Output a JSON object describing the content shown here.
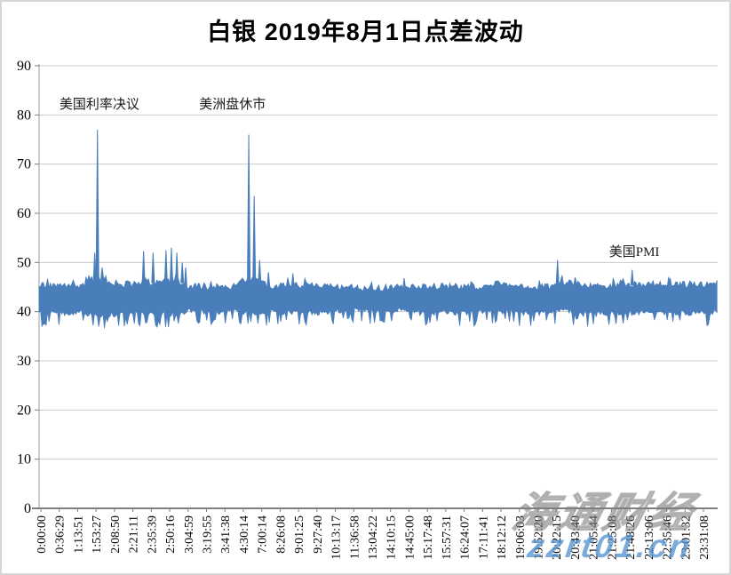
{
  "title": "白银 2019年8月1日点差波动",
  "watermark": {
    "brand": "海通财经",
    "url": "zzrt01.cn"
  },
  "chart_data": {
    "type": "line",
    "title": "白银 2019年8月1日点差波动",
    "xlabel": "",
    "ylabel": "",
    "ylim": [
      0,
      90
    ],
    "y_ticks": [
      0,
      10,
      20,
      30,
      40,
      50,
      60,
      70,
      80,
      90
    ],
    "grid": true,
    "legend": false,
    "series_color": "#4A7EBB",
    "x_tick_labels": [
      "0:00:00",
      "0:36:29",
      "1:13:51",
      "1:53:27",
      "2:08:50",
      "2:21:11",
      "2:35:39",
      "2:50:16",
      "3:04:59",
      "3:19:55",
      "3:41:38",
      "4:30:14",
      "7:00:14",
      "8:26:08",
      "9:01:25",
      "9:27:40",
      "10:13:17",
      "11:36:58",
      "13:04:22",
      "14:10:15",
      "14:45:00",
      "15:17:48",
      "15:57:31",
      "16:24:07",
      "17:11:41",
      "18:12:12",
      "19:06:03",
      "19:52:20",
      "20:22:15",
      "20:43:40",
      "21:05:44",
      "21:25:08",
      "21:48:26",
      "22:13:06",
      "22:35:46",
      "23:01:32",
      "23:31:08"
    ],
    "noise_band_segments": [
      {
        "x0": 0.0,
        "x1": 0.068,
        "min": 39.2,
        "max": 46.0
      },
      {
        "x0": 0.068,
        "x1": 0.1,
        "min": 38.8,
        "max": 47.5
      },
      {
        "x0": 0.1,
        "x1": 0.145,
        "min": 38.8,
        "max": 46.3
      },
      {
        "x0": 0.145,
        "x1": 0.215,
        "min": 39.0,
        "max": 46.8
      },
      {
        "x0": 0.215,
        "x1": 0.295,
        "min": 39.5,
        "max": 45.8
      },
      {
        "x0": 0.295,
        "x1": 0.335,
        "min": 39.0,
        "max": 47.0
      },
      {
        "x0": 0.335,
        "x1": 0.43,
        "min": 39.2,
        "max": 46.0
      },
      {
        "x0": 0.43,
        "x1": 0.56,
        "min": 39.6,
        "max": 45.6
      },
      {
        "x0": 0.56,
        "x1": 0.66,
        "min": 39.2,
        "max": 45.8
      },
      {
        "x0": 0.66,
        "x1": 0.705,
        "min": 39.5,
        "max": 46.3
      },
      {
        "x0": 0.705,
        "x1": 0.755,
        "min": 39.2,
        "max": 45.8
      },
      {
        "x0": 0.755,
        "x1": 0.8,
        "min": 39.5,
        "max": 46.5
      },
      {
        "x0": 0.8,
        "x1": 0.86,
        "min": 39.0,
        "max": 46.0
      },
      {
        "x0": 0.86,
        "x1": 1.0,
        "min": 39.2,
        "max": 46.3
      }
    ],
    "spikes": [
      {
        "x": 0.082,
        "value": 52.0
      },
      {
        "x": 0.086,
        "value": 77.0
      },
      {
        "x": 0.093,
        "value": 49.0
      },
      {
        "x": 0.154,
        "value": 52.3
      },
      {
        "x": 0.168,
        "value": 52.0
      },
      {
        "x": 0.187,
        "value": 52.5
      },
      {
        "x": 0.195,
        "value": 53.0
      },
      {
        "x": 0.203,
        "value": 52.0
      },
      {
        "x": 0.211,
        "value": 50.0
      },
      {
        "x": 0.216,
        "value": 49.0
      },
      {
        "x": 0.309,
        "value": 76.0
      },
      {
        "x": 0.317,
        "value": 63.5
      },
      {
        "x": 0.325,
        "value": 50.5
      },
      {
        "x": 0.338,
        "value": 48.0
      },
      {
        "x": 0.374,
        "value": 47.8
      },
      {
        "x": 0.538,
        "value": 46.8
      },
      {
        "x": 0.764,
        "value": 50.5
      },
      {
        "x": 0.79,
        "value": 47.0
      },
      {
        "x": 0.874,
        "value": 48.5
      },
      {
        "x": 0.93,
        "value": 46.8
      }
    ],
    "annotations": [
      {
        "text": "美国利率决议",
        "x": 0.03,
        "value": 81.3
      },
      {
        "text": "美洲盘休市",
        "x": 0.236,
        "value": 81.3
      },
      {
        "text": "美国PMI",
        "x": 0.84,
        "value": 51.3
      }
    ]
  }
}
